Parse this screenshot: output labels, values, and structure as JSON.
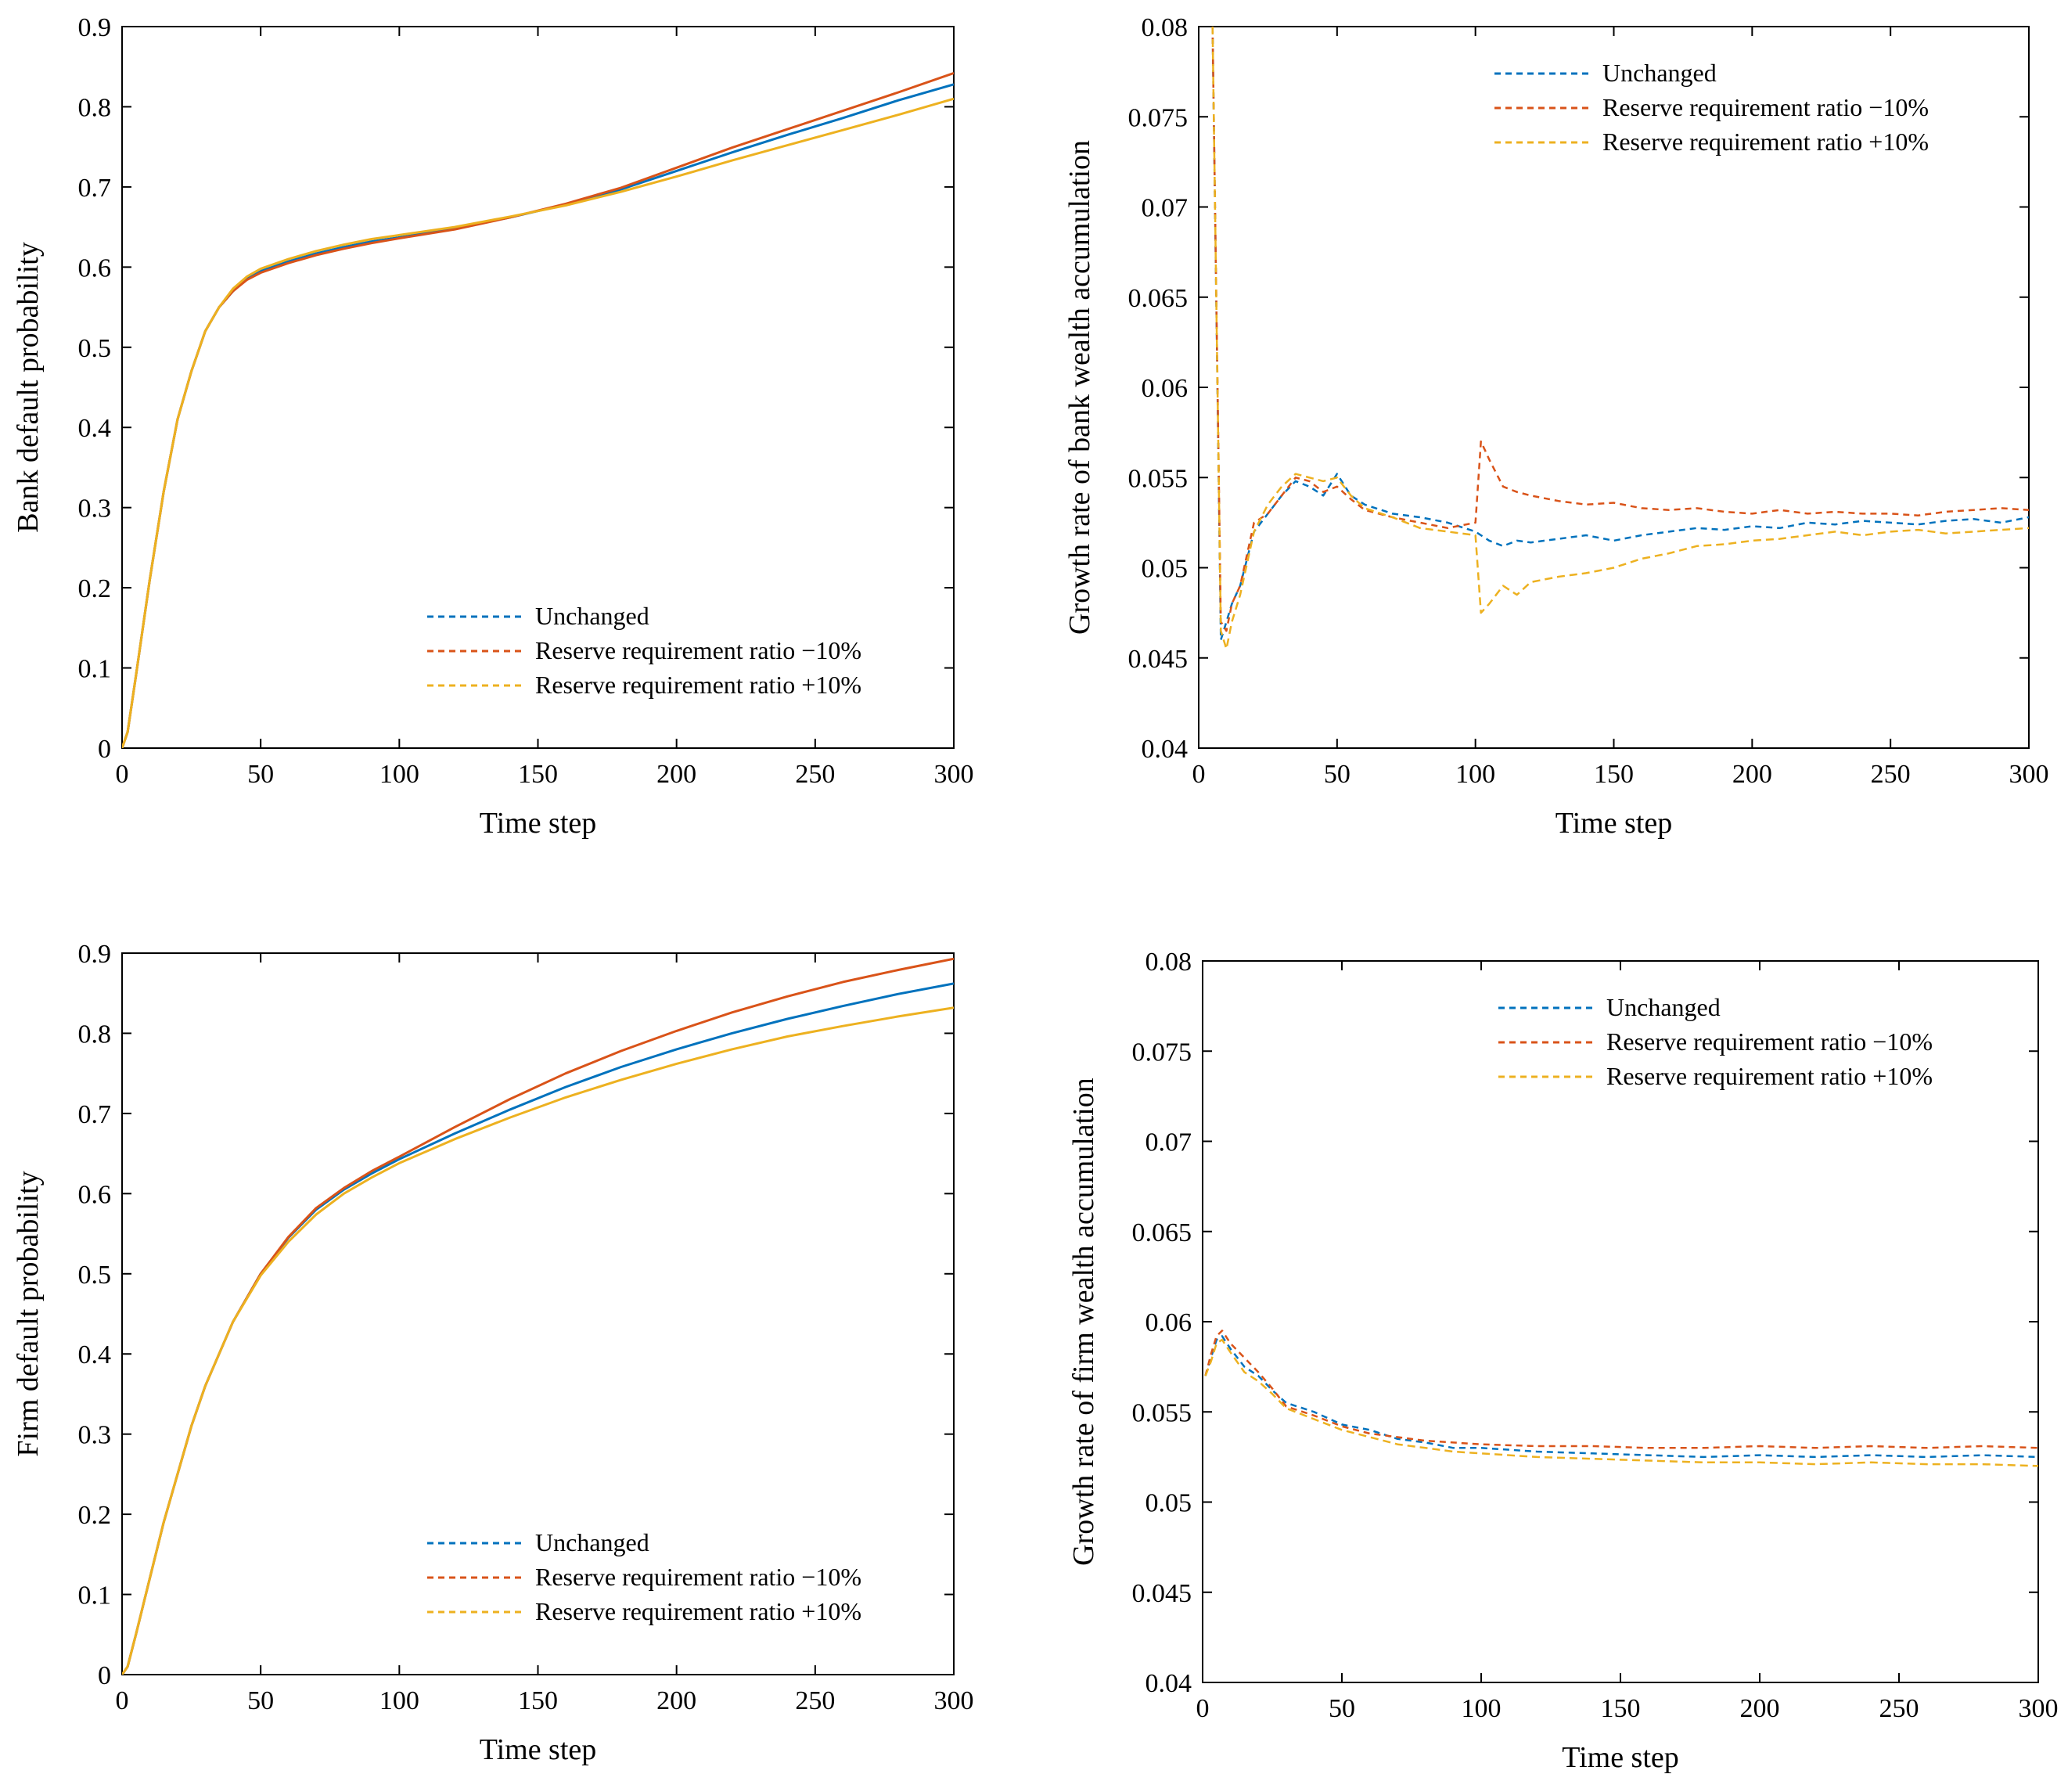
{
  "colors": {
    "unchanged": "#0072BD",
    "rrr_minus": "#D95319",
    "rrr_plus": "#EDB120"
  },
  "chart_data": [
    {
      "id": "bank-default",
      "type": "line",
      "xlabel": "Time step",
      "ylabel": "Bank default probability",
      "xlim": [
        0,
        300
      ],
      "ylim": [
        0,
        0.9
      ],
      "xticks": [
        0,
        50,
        100,
        150,
        200,
        250,
        300
      ],
      "xtick_labels": [
        "0",
        "50",
        "100",
        "150",
        "200",
        "250",
        "300"
      ],
      "yticks": [
        0,
        0.1,
        0.2,
        0.3,
        0.4,
        0.5,
        0.6,
        0.7,
        0.8,
        0.9
      ],
      "ytick_labels": [
        "0",
        "0.1",
        "0.2",
        "0.3",
        "0.4",
        "0.5",
        "0.6",
        "0.7",
        "0.8",
        "0.9"
      ],
      "legend_position": "bottom-right",
      "x": [
        0,
        2,
        5,
        10,
        15,
        20,
        25,
        30,
        35,
        40,
        45,
        50,
        60,
        70,
        80,
        90,
        100,
        120,
        140,
        160,
        180,
        200,
        220,
        240,
        260,
        280,
        300
      ],
      "series": [
        {
          "name": "Unchanged",
          "color_key": "unchanged",
          "values": [
            0,
            0.02,
            0.09,
            0.21,
            0.32,
            0.41,
            0.47,
            0.52,
            0.55,
            0.57,
            0.585,
            0.595,
            0.607,
            0.617,
            0.625,
            0.632,
            0.637,
            0.648,
            0.662,
            0.678,
            0.697,
            0.72,
            0.743,
            0.765,
            0.786,
            0.808,
            0.828
          ]
        },
        {
          "name": "Reserve requirement ratio −10%",
          "color_key": "rrr_minus",
          "values": [
            0,
            0.02,
            0.09,
            0.21,
            0.32,
            0.41,
            0.47,
            0.52,
            0.55,
            0.57,
            0.584,
            0.593,
            0.605,
            0.615,
            0.623,
            0.63,
            0.636,
            0.647,
            0.662,
            0.679,
            0.699,
            0.724,
            0.749,
            0.772,
            0.795,
            0.818,
            0.842
          ]
        },
        {
          "name": "Reserve requirement ratio +10%",
          "color_key": "rrr_plus",
          "values": [
            0,
            0.02,
            0.09,
            0.21,
            0.32,
            0.41,
            0.47,
            0.52,
            0.55,
            0.573,
            0.588,
            0.598,
            0.61,
            0.62,
            0.628,
            0.635,
            0.64,
            0.65,
            0.663,
            0.677,
            0.694,
            0.713,
            0.733,
            0.752,
            0.771,
            0.79,
            0.81
          ]
        }
      ]
    },
    {
      "id": "bank-growth",
      "type": "line",
      "xlabel": "Time step",
      "ylabel": "Growth rate of bank wealth accumulation",
      "xlim": [
        0,
        300
      ],
      "ylim": [
        0.04,
        0.08
      ],
      "xticks": [
        0,
        50,
        100,
        150,
        200,
        250,
        300
      ],
      "xtick_labels": [
        "0",
        "50",
        "100",
        "150",
        "200",
        "250",
        "300"
      ],
      "yticks": [
        0.04,
        0.045,
        0.05,
        0.055,
        0.06,
        0.065,
        0.07,
        0.075,
        0.08
      ],
      "ytick_labels": [
        "0.04",
        "0.045",
        "0.05",
        "0.055",
        "0.06",
        "0.065",
        "0.07",
        "0.075",
        "0.08"
      ],
      "legend_position": "top-right",
      "x": [
        5,
        8,
        10,
        12,
        15,
        20,
        25,
        30,
        35,
        40,
        45,
        50,
        55,
        60,
        70,
        80,
        90,
        100,
        102,
        105,
        110,
        115,
        120,
        130,
        140,
        150,
        160,
        170,
        180,
        190,
        200,
        210,
        220,
        230,
        240,
        250,
        260,
        270,
        280,
        290,
        300
      ],
      "series": [
        {
          "name": "Unchanged",
          "color_key": "unchanged",
          "values": [
            0.08,
            0.046,
            0.047,
            0.048,
            0.049,
            0.052,
            0.053,
            0.054,
            0.0548,
            0.0545,
            0.054,
            0.0552,
            0.054,
            0.0535,
            0.053,
            0.0528,
            0.0525,
            0.052,
            0.0518,
            0.0515,
            0.0512,
            0.0515,
            0.0514,
            0.0516,
            0.0518,
            0.0515,
            0.0518,
            0.052,
            0.0522,
            0.0521,
            0.0523,
            0.0522,
            0.0525,
            0.0524,
            0.0526,
            0.0525,
            0.0524,
            0.0526,
            0.0527,
            0.0525,
            0.0528
          ]
        },
        {
          "name": "Reserve requirement ratio −10%",
          "color_key": "rrr_minus",
          "values": [
            0.08,
            0.047,
            0.0465,
            0.048,
            0.049,
            0.0525,
            0.053,
            0.054,
            0.055,
            0.0548,
            0.0542,
            0.0545,
            0.0538,
            0.0532,
            0.0528,
            0.0525,
            0.0522,
            0.0525,
            0.057,
            0.056,
            0.0545,
            0.0542,
            0.054,
            0.0537,
            0.0535,
            0.0536,
            0.0533,
            0.0532,
            0.0533,
            0.0531,
            0.053,
            0.0532,
            0.053,
            0.0531,
            0.053,
            0.053,
            0.0529,
            0.0531,
            0.0532,
            0.0533,
            0.0532
          ]
        },
        {
          "name": "Reserve requirement ratio +10%",
          "color_key": "rrr_plus",
          "values": [
            0.08,
            0.0465,
            0.0455,
            0.047,
            0.0485,
            0.052,
            0.0535,
            0.0545,
            0.0552,
            0.055,
            0.0548,
            0.055,
            0.054,
            0.0533,
            0.0528,
            0.0522,
            0.052,
            0.0518,
            0.0475,
            0.048,
            0.049,
            0.0485,
            0.0492,
            0.0495,
            0.0497,
            0.05,
            0.0505,
            0.0508,
            0.0512,
            0.0513,
            0.0515,
            0.0516,
            0.0518,
            0.052,
            0.0518,
            0.052,
            0.0521,
            0.0519,
            0.052,
            0.0521,
            0.0522
          ]
        }
      ]
    },
    {
      "id": "firm-default",
      "type": "line",
      "xlabel": "Time step",
      "ylabel": "Firm default probability",
      "xlim": [
        0,
        300
      ],
      "ylim": [
        0,
        0.9
      ],
      "xticks": [
        0,
        50,
        100,
        150,
        200,
        250,
        300
      ],
      "xtick_labels": [
        "0",
        "50",
        "100",
        "150",
        "200",
        "250",
        "300"
      ],
      "yticks": [
        0,
        0.1,
        0.2,
        0.3,
        0.4,
        0.5,
        0.6,
        0.7,
        0.8,
        0.9
      ],
      "ytick_labels": [
        "0",
        "0.1",
        "0.2",
        "0.3",
        "0.4",
        "0.5",
        "0.6",
        "0.7",
        "0.8",
        "0.9"
      ],
      "legend_position": "bottom-right",
      "x": [
        0,
        2,
        5,
        10,
        15,
        20,
        25,
        30,
        40,
        50,
        60,
        70,
        80,
        90,
        100,
        120,
        140,
        160,
        180,
        200,
        220,
        240,
        260,
        280,
        300
      ],
      "series": [
        {
          "name": "Unchanged",
          "color_key": "unchanged",
          "values": [
            0,
            0.01,
            0.05,
            0.12,
            0.19,
            0.25,
            0.31,
            0.36,
            0.44,
            0.5,
            0.545,
            0.58,
            0.605,
            0.625,
            0.643,
            0.675,
            0.705,
            0.733,
            0.758,
            0.78,
            0.8,
            0.818,
            0.834,
            0.849,
            0.862
          ]
        },
        {
          "name": "Reserve requirement ratio −10%",
          "color_key": "rrr_minus",
          "values": [
            0,
            0.01,
            0.05,
            0.12,
            0.19,
            0.25,
            0.31,
            0.36,
            0.44,
            0.5,
            0.546,
            0.582,
            0.607,
            0.628,
            0.646,
            0.683,
            0.718,
            0.75,
            0.778,
            0.803,
            0.826,
            0.846,
            0.864,
            0.879,
            0.893
          ]
        },
        {
          "name": "Reserve requirement ratio +10%",
          "color_key": "rrr_plus",
          "values": [
            0,
            0.01,
            0.05,
            0.12,
            0.19,
            0.25,
            0.31,
            0.36,
            0.44,
            0.498,
            0.54,
            0.574,
            0.6,
            0.62,
            0.638,
            0.668,
            0.695,
            0.72,
            0.742,
            0.762,
            0.78,
            0.796,
            0.809,
            0.821,
            0.832
          ]
        }
      ]
    },
    {
      "id": "firm-growth",
      "type": "line",
      "xlabel": "Time step",
      "ylabel": "Growth rate of firm wealth accumulation",
      "xlim": [
        0,
        300
      ],
      "ylim": [
        0.04,
        0.08
      ],
      "xticks": [
        0,
        50,
        100,
        150,
        200,
        250,
        300
      ],
      "xtick_labels": [
        "0",
        "50",
        "100",
        "150",
        "200",
        "250",
        "300"
      ],
      "yticks": [
        0.04,
        0.045,
        0.05,
        0.055,
        0.06,
        0.065,
        0.07,
        0.075,
        0.08
      ],
      "ytick_labels": [
        "0.04",
        "0.045",
        "0.05",
        "0.055",
        "0.06",
        "0.065",
        "0.07",
        "0.075",
        "0.08"
      ],
      "legend_position": "top-right",
      "x": [
        1,
        3,
        5,
        7,
        10,
        15,
        20,
        25,
        30,
        40,
        50,
        60,
        70,
        80,
        90,
        100,
        120,
        140,
        160,
        180,
        200,
        220,
        240,
        260,
        280,
        300
      ],
      "series": [
        {
          "name": "Unchanged",
          "color_key": "unchanged",
          "values": [
            0.057,
            0.058,
            0.059,
            0.0592,
            0.0585,
            0.0575,
            0.057,
            0.0562,
            0.0555,
            0.055,
            0.0543,
            0.054,
            0.0535,
            0.0533,
            0.053,
            0.053,
            0.0528,
            0.0527,
            0.0526,
            0.0525,
            0.0526,
            0.0525,
            0.0526,
            0.0525,
            0.0526,
            0.0525
          ]
        },
        {
          "name": "Reserve requirement ratio −10%",
          "color_key": "rrr_minus",
          "values": [
            0.057,
            0.0582,
            0.0592,
            0.0595,
            0.0588,
            0.058,
            0.0572,
            0.0563,
            0.0553,
            0.0548,
            0.0542,
            0.0538,
            0.0536,
            0.0534,
            0.0533,
            0.0532,
            0.0531,
            0.0531,
            0.053,
            0.053,
            0.0531,
            0.053,
            0.0531,
            0.053,
            0.0531,
            0.053
          ]
        },
        {
          "name": "Reserve requirement ratio +10%",
          "color_key": "rrr_plus",
          "values": [
            0.057,
            0.0578,
            0.0588,
            0.059,
            0.0583,
            0.0572,
            0.0567,
            0.056,
            0.0552,
            0.0546,
            0.054,
            0.0536,
            0.0532,
            0.053,
            0.0528,
            0.0527,
            0.0525,
            0.0524,
            0.0523,
            0.0522,
            0.0522,
            0.0521,
            0.0522,
            0.0521,
            0.0521,
            0.052
          ]
        }
      ]
    }
  ]
}
